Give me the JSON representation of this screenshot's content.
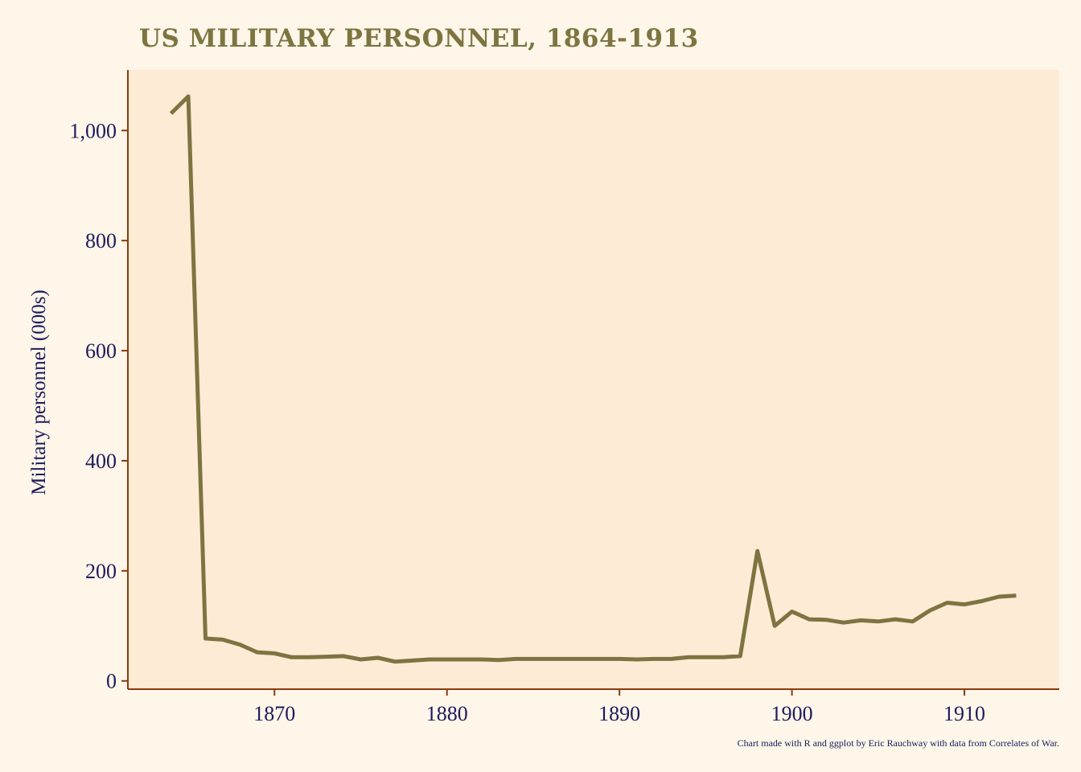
{
  "colors": {
    "background": "#fdf6e9",
    "panel": "#feebd6",
    "axis": "#8b3a0f",
    "line": "#7d7440",
    "text": "#1f1a5c",
    "title": "#7d7440"
  },
  "chart_data": {
    "type": "line",
    "title": "US MILITARY PERSONNEL, 1864-1913",
    "xlabel": "",
    "ylabel": "Military personnel (000s)",
    "caption": "Chart made with R and ggplot by Eric Rauchway with data from Correlates of War.",
    "xlim": [
      1861.5,
      1915.5
    ],
    "ylim": [
      -15,
      1110
    ],
    "x_ticks": [
      1870,
      1880,
      1890,
      1900,
      1910
    ],
    "x_tick_labels": [
      "1870",
      "1880",
      "1890",
      "1900",
      "1910"
    ],
    "y_ticks": [
      0,
      200,
      400,
      600,
      800,
      1000
    ],
    "y_tick_labels": [
      "0",
      "200",
      "400",
      "600",
      "800",
      "1,000"
    ],
    "grid": false,
    "x": [
      1864,
      1865,
      1866,
      1867,
      1868,
      1869,
      1870,
      1871,
      1872,
      1873,
      1874,
      1875,
      1876,
      1877,
      1878,
      1879,
      1880,
      1881,
      1882,
      1883,
      1884,
      1885,
      1886,
      1887,
      1888,
      1889,
      1890,
      1891,
      1892,
      1893,
      1894,
      1895,
      1896,
      1897,
      1898,
      1899,
      1900,
      1901,
      1902,
      1903,
      1904,
      1905,
      1906,
      1907,
      1908,
      1909,
      1910,
      1911,
      1912,
      1913
    ],
    "y": [
      1031,
      1062,
      77,
      75,
      66,
      52,
      50,
      43,
      43,
      44,
      45,
      39,
      42,
      35,
      37,
      39,
      39,
      39,
      39,
      38,
      40,
      40,
      40,
      40,
      40,
      40,
      40,
      39,
      40,
      40,
      43,
      43,
      43,
      45,
      236,
      100,
      126,
      112,
      111,
      106,
      110,
      108,
      112,
      108,
      128,
      142,
      139,
      145,
      153,
      155
    ]
  }
}
